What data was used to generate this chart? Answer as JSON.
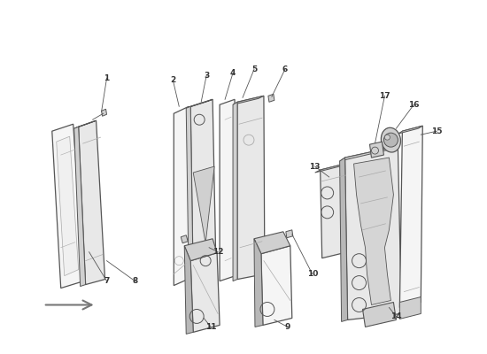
{
  "bg": "#ffffff",
  "lc": "#aaaaaa",
  "dc": "#555555",
  "blk": "#333333",
  "figsize": [
    5.5,
    4.0
  ],
  "dpi": 100
}
